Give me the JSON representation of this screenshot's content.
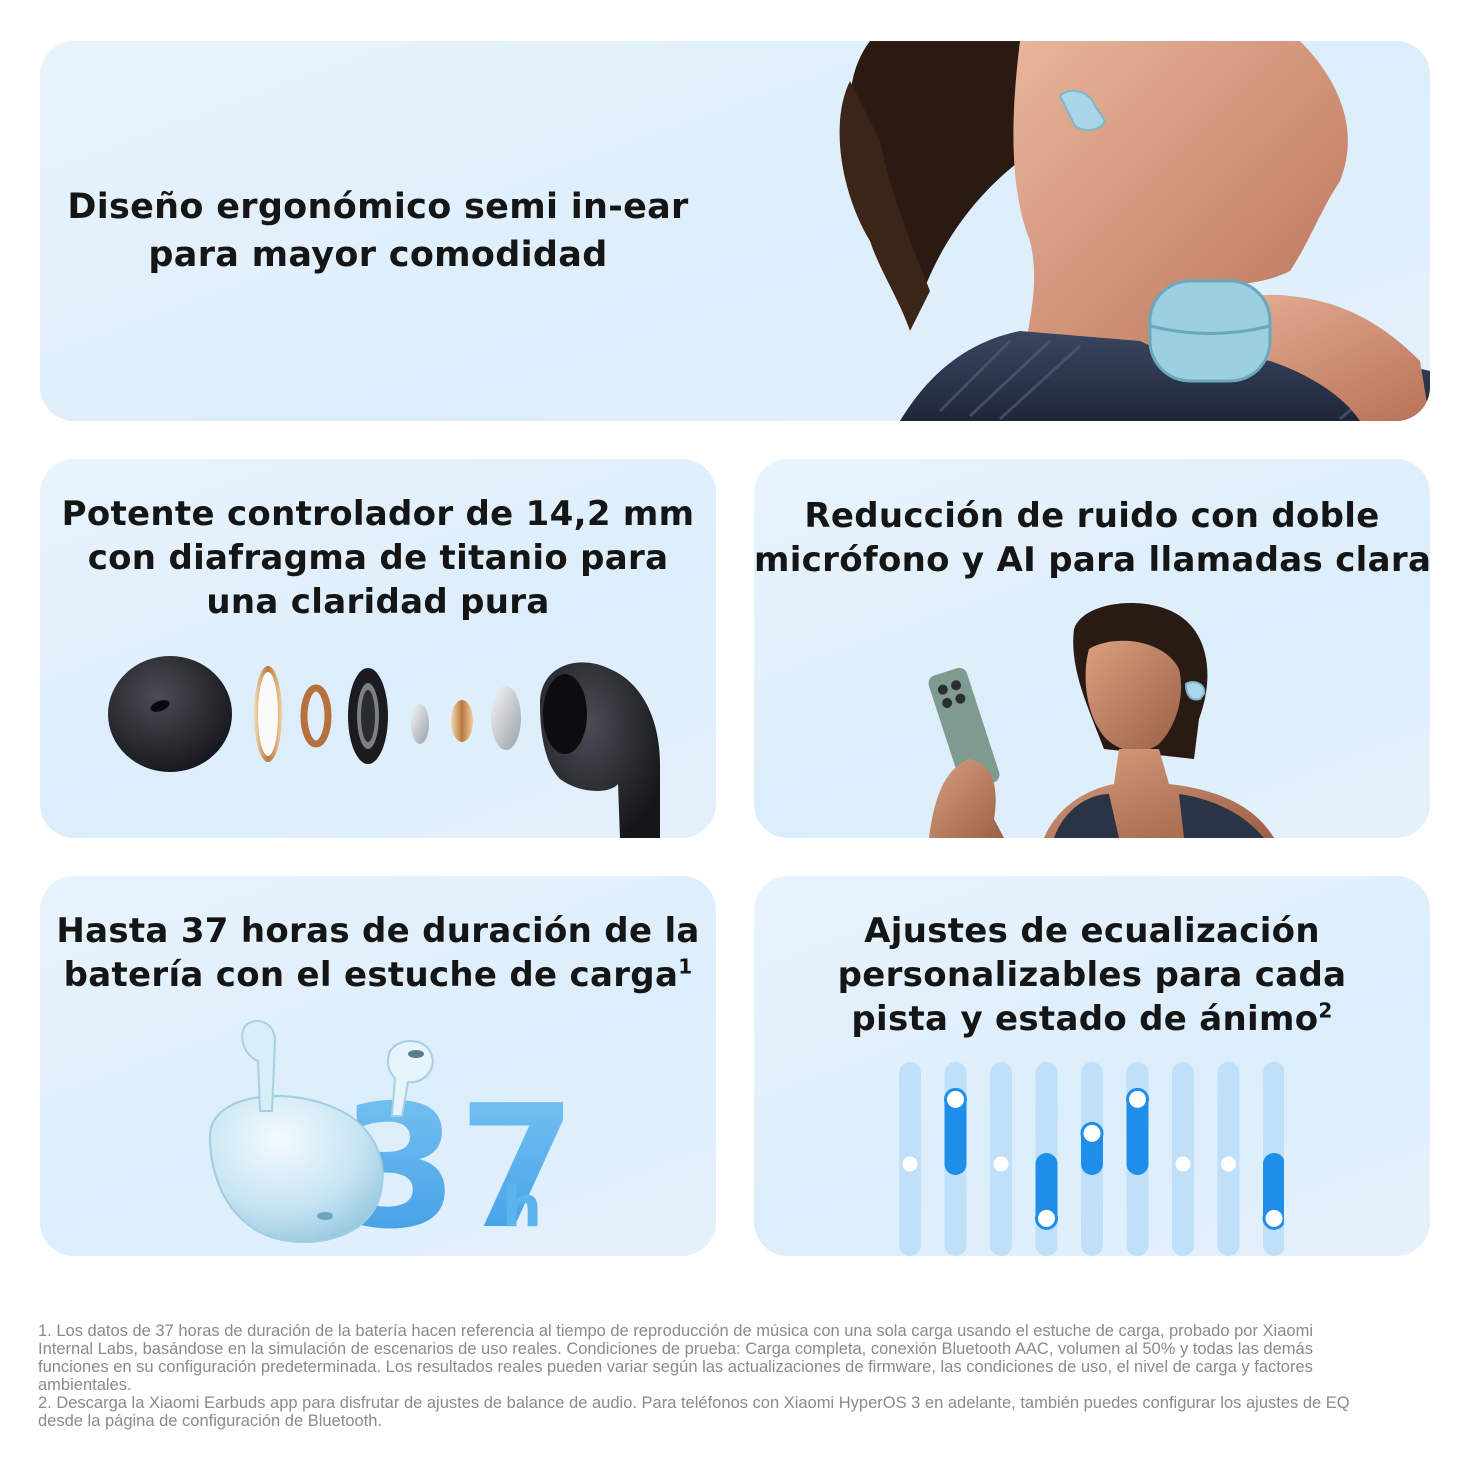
{
  "cards": {
    "ergonomic": {
      "line1": "Diseño ergonómico semi in-ear",
      "line2": "para mayor comodidad"
    },
    "driver": {
      "line1": "Potente controlador de 14,2 mm",
      "line2": "con diafragma de titanio para",
      "line3": "una claridad pura"
    },
    "noise": {
      "line1": "Reducción de ruido con doble",
      "line2": "micrófono y AI para llamadas claras"
    },
    "battery": {
      "line1": "Hasta 37 horas de duración de la",
      "line2": "batería con el estuche de carga",
      "sup": "1",
      "big_number": "37",
      "big_unit": "h"
    },
    "eq": {
      "line1": "Ajustes de ecualización",
      "line2": "personalizables para cada",
      "line3": "pista y estado de ánimo",
      "sup": "2",
      "slider_levels": [
        0.5,
        0.88,
        0.5,
        0.18,
        0.68,
        0.88,
        0.5,
        0.5,
        0.18
      ]
    }
  },
  "colors": {
    "card_bg": "#e2f0fc",
    "eq_track": "#bfe0f8",
    "eq_fill": "#1f8ee8",
    "big_number": "#5cb4ee"
  },
  "footnotes": {
    "note1": "1. Los datos de 37 horas de duración de la batería hacen referencia al tiempo de reproducción de música con una sola carga usando el estuche de carga, probado por Xiaomi Internal Labs, basándose en la simulación de escenarios de uso reales. Condiciones de prueba: Carga completa, conexión Bluetooth AAC, volumen al 50% y todas las demás funciones en su configuración predeterminada. Los resultados reales pueden variar según las actualizaciones de firmware, las condiciones de uso, el nivel de carga y factores ambientales.",
    "note2": "2. Descarga la Xiaomi Earbuds app para disfrutar de ajustes de balance de audio. Para teléfonos con Xiaomi HyperOS 3 en adelante, también puedes configurar los ajustes de EQ desde la página de configuración de Bluetooth."
  }
}
